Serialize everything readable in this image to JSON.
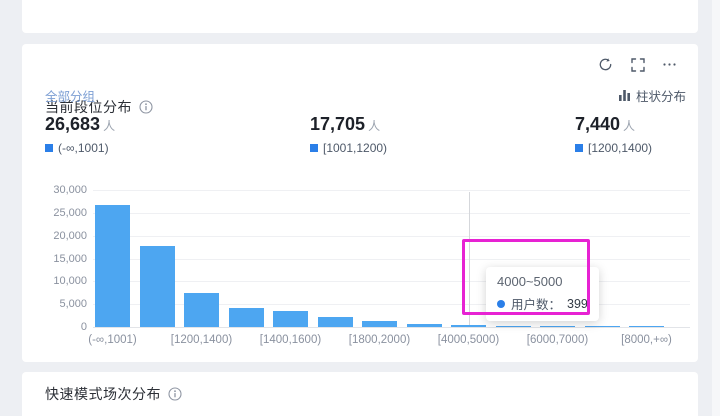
{
  "rank_card": {
    "title": "当前段位分布",
    "group_filter_label": "全部分组",
    "chart_type_label": "柱状分布",
    "toolbar_icons": [
      "refresh",
      "fullscreen",
      "more"
    ],
    "stats": [
      {
        "value": "26,683",
        "unit": "人",
        "range": "(-∞,1001)"
      },
      {
        "value": "17,705",
        "unit": "人",
        "range": "[1001,1200)"
      },
      {
        "value": "7,440",
        "unit": "人",
        "range": "[1200,1400)"
      }
    ],
    "accent_color": "#2b7fe8",
    "bar_color": "#4da6f1"
  },
  "chart_data": {
    "type": "bar",
    "title": "当前段位分布",
    "series_name": "用户数",
    "ylim": [
      0,
      30000
    ],
    "y_ticks": [
      "30,000",
      "25,000",
      "20,000",
      "15,000",
      "10,000",
      "5,000",
      "0"
    ],
    "values": [
      26683,
      17705,
      7440,
      4100,
      3500,
      2100,
      1300,
      750,
      399,
      240,
      140,
      70,
      35
    ],
    "x_tick_labels_visible": [
      "(-∞,1001)",
      "[1200,1400)",
      "[1400,1600)",
      "[1800,2000)",
      "[4000,5000)",
      "[6000,7000)",
      "[8000,+∞)"
    ],
    "x_tick_indices": [
      0,
      2,
      4,
      6,
      8,
      10,
      12
    ],
    "grid": true,
    "legend_position": "none",
    "hover_index": 8,
    "tooltip": {
      "title": "4000~5000",
      "series_label": "用户数：",
      "value": "399"
    }
  },
  "annotation": {
    "color": "#e722d3"
  },
  "bottom_card": {
    "title": "快速模式场次分布"
  }
}
